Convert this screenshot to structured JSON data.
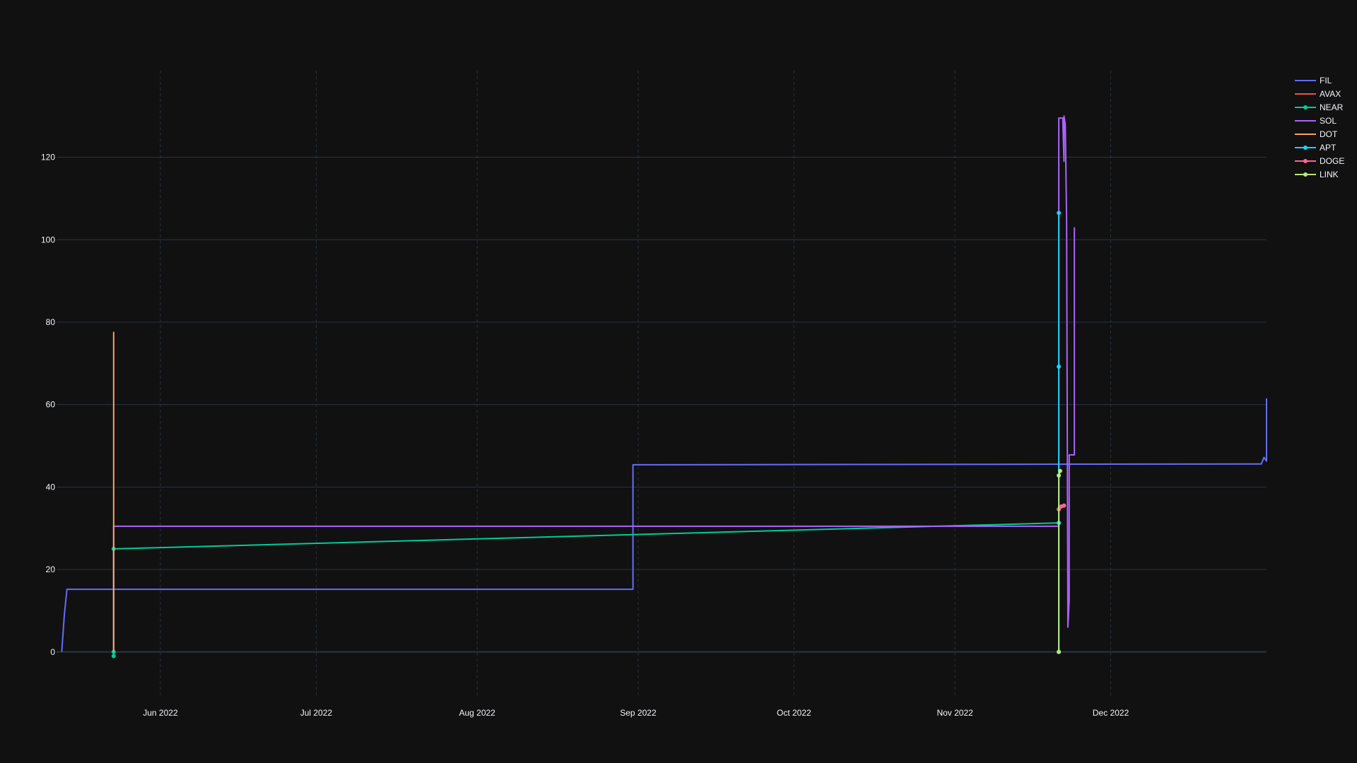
{
  "chart_data": {
    "type": "line",
    "title": "",
    "xlabel": "",
    "ylabel": "",
    "x_range": [
      "2022-05-12",
      "2022-12-31"
    ],
    "ylim": [
      -11,
      141
    ],
    "y_ticks": [
      0,
      20,
      40,
      60,
      80,
      100,
      120
    ],
    "x_ticks": [
      {
        "date": "2022-06-01",
        "label": "Jun 2022"
      },
      {
        "date": "2022-07-01",
        "label": "Jul 2022"
      },
      {
        "date": "2022-08-01",
        "label": "Aug 2022"
      },
      {
        "date": "2022-09-01",
        "label": "Sep 2022"
      },
      {
        "date": "2022-10-01",
        "label": "Oct 2022"
      },
      {
        "date": "2022-11-01",
        "label": "Nov 2022"
      },
      {
        "date": "2022-12-01",
        "label": "Dec 2022"
      }
    ],
    "grid": {
      "y": true,
      "x_dashed": true
    },
    "legend_position": "top-right",
    "colors": {
      "background": "#111111",
      "grid": "#283442",
      "axis_text": "#f2f5fa"
    },
    "series": [
      {
        "name": "FIL",
        "color": "#636efa",
        "markers": false,
        "points": [
          [
            "2022-05-13",
            0
          ],
          [
            "2022-05-13T12:00",
            9
          ],
          [
            "2022-05-14",
            15.2
          ],
          [
            "2022-08-31",
            15.2
          ],
          [
            "2022-08-31",
            45.4
          ],
          [
            "2022-12-30",
            45.6
          ],
          [
            "2022-12-30T12:00",
            47.2
          ],
          [
            "2022-12-31",
            46.3
          ],
          [
            "2022-12-31",
            61.5
          ]
        ]
      },
      {
        "name": "AVAX",
        "color": "#EF553B",
        "markers": false,
        "points": [
          [
            "2022-05-23",
            0
          ],
          [
            "2022-05-23",
            25.5
          ],
          [
            "2022-05-23",
            0.5
          ]
        ]
      },
      {
        "name": "NEAR",
        "color": "#00cc96",
        "markers": true,
        "points": [
          [
            "2022-05-23",
            -1
          ],
          [
            "2022-05-23",
            0
          ],
          [
            "2022-05-23",
            25
          ],
          [
            "2022-11-21",
            31.3
          ],
          [
            "2022-11-21",
            0
          ]
        ]
      },
      {
        "name": "SOL",
        "color": "#ab63fa",
        "markers": false,
        "points": [
          [
            "2022-05-23",
            0
          ],
          [
            "2022-05-23",
            30.5
          ],
          [
            "2022-11-21",
            30.5
          ],
          [
            "2022-11-21",
            129.5
          ],
          [
            "2022-11-21T18:00",
            129.5
          ],
          [
            "2022-11-22",
            119
          ],
          [
            "2022-11-22",
            130
          ],
          [
            "2022-11-22T06:00",
            128
          ],
          [
            "2022-11-22T12:00",
            105
          ],
          [
            "2022-11-22T18:00",
            6
          ],
          [
            "2022-11-23",
            12.5
          ],
          [
            "2022-11-23",
            47.8
          ],
          [
            "2022-11-24",
            47.8
          ],
          [
            "2022-11-24",
            103
          ]
        ]
      },
      {
        "name": "DOT",
        "color": "#FFA15A",
        "markers": false,
        "points": [
          [
            "2022-05-23",
            0
          ],
          [
            "2022-05-23",
            77.5
          ],
          [
            "2022-05-23",
            0.5
          ]
        ]
      },
      {
        "name": "APT",
        "color": "#19d3f3",
        "markers": true,
        "points": [
          [
            "2022-11-21",
            0
          ],
          [
            "2022-11-21",
            69.2
          ],
          [
            "2022-11-21",
            106.5
          ],
          [
            "2022-11-21",
            31.3
          ]
        ]
      },
      {
        "name": "DOGE",
        "color": "#FF6692",
        "markers": true,
        "points": [
          [
            "2022-11-21",
            34.6
          ],
          [
            "2022-11-21T12:00",
            35.3
          ],
          [
            "2022-11-22",
            35.5
          ]
        ]
      },
      {
        "name": "LINK",
        "color": "#B6E880",
        "markers": true,
        "points": [
          [
            "2022-11-21",
            0
          ],
          [
            "2022-11-21",
            42.8
          ],
          [
            "2022-11-21T06:00",
            43.9
          ]
        ]
      }
    ]
  }
}
